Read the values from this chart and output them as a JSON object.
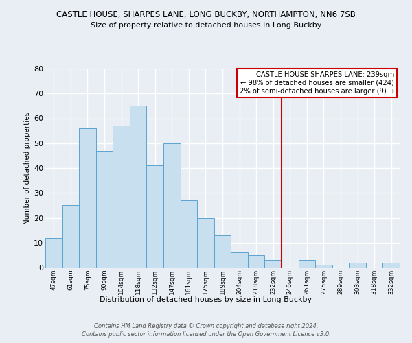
{
  "title": "CASTLE HOUSE, SHARPES LANE, LONG BUCKBY, NORTHAMPTON, NN6 7SB",
  "subtitle": "Size of property relative to detached houses in Long Buckby",
  "xlabel": "Distribution of detached houses by size in Long Buckby",
  "ylabel": "Number of detached properties",
  "bin_labels": [
    "47sqm",
    "61sqm",
    "75sqm",
    "90sqm",
    "104sqm",
    "118sqm",
    "132sqm",
    "147sqm",
    "161sqm",
    "175sqm",
    "189sqm",
    "204sqm",
    "218sqm",
    "232sqm",
    "246sqm",
    "261sqm",
    "275sqm",
    "289sqm",
    "303sqm",
    "318sqm",
    "332sqm"
  ],
  "bar_heights": [
    12,
    25,
    56,
    47,
    57,
    65,
    41,
    50,
    27,
    20,
    13,
    6,
    5,
    3,
    0,
    3,
    1,
    0,
    2,
    0,
    2
  ],
  "bar_color": "#c8dff0",
  "bar_edge_color": "#5ba3d0",
  "vline_color": "#cc0000",
  "ylim": [
    0,
    80
  ],
  "yticks": [
    0,
    10,
    20,
    30,
    40,
    50,
    60,
    70,
    80
  ],
  "annotation_title": "CASTLE HOUSE SHARPES LANE: 239sqm",
  "annotation_line1": "← 98% of detached houses are smaller (424)",
  "annotation_line2": "2% of semi-detached houses are larger (9) →",
  "annotation_box_color": "#ffffff",
  "annotation_box_edge": "#cc0000",
  "footnote1": "Contains HM Land Registry data © Crown copyright and database right 2024.",
  "footnote2": "Contains public sector information licensed under the Open Government Licence v3.0.",
  "background_color": "#e8eef4",
  "grid_color": "#ffffff",
  "vline_bin_index": 14
}
